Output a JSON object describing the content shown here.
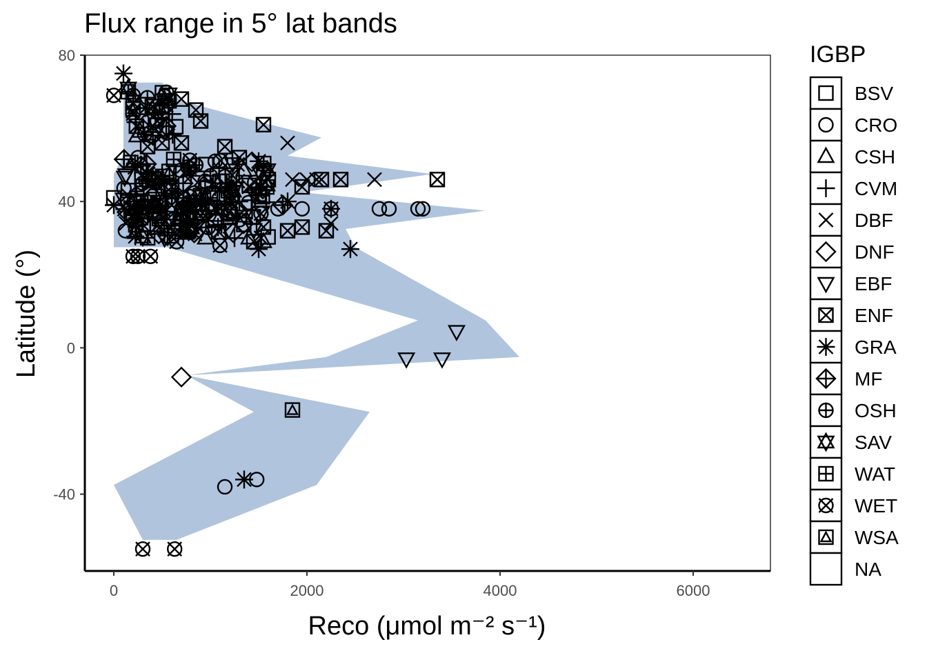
{
  "chart_data": {
    "type": "scatter",
    "title": "Flux range in 5° lat bands",
    "xlabel": "Reco (μmol m⁻² s⁻¹)",
    "ylabel": "Latitude (°)",
    "xlim": [
      -300,
      6800
    ],
    "ylim": [
      -61,
      80
    ],
    "x_ticks": [
      0,
      2000,
      4000,
      6000
    ],
    "y_ticks": [
      -40,
      0,
      40,
      80
    ],
    "band_color": "#b0c4de",
    "legend": {
      "title": "IGBP",
      "placement": "right",
      "entries": [
        "BSV",
        "CRO",
        "CSH",
        "CVM",
        "DBF",
        "DNF",
        "EBF",
        "ENF",
        "GRA",
        "MF",
        "OSH",
        "SAV",
        "WAT",
        "WET",
        "WSA",
        "NA"
      ]
    },
    "range_band": {
      "min": [
        [
          300,
          -52.5
        ],
        [
          0,
          -37.5
        ],
        [
          1450,
          -17.5
        ],
        [
          750,
          -7.5
        ],
        [
          2200,
          -2.5
        ],
        [
          3150,
          7.5
        ],
        [
          550,
          27.5
        ],
        [
          0,
          27.5
        ],
        [
          0,
          32.5
        ],
        [
          0,
          37.5
        ],
        [
          0,
          42.5
        ],
        [
          0,
          47.5
        ],
        [
          100,
          52.5
        ],
        [
          100,
          57.5
        ],
        [
          100,
          62.5
        ],
        [
          100,
          67.5
        ],
        [
          100,
          72.5
        ]
      ],
      "max": [
        [
          100,
          72.5
        ],
        [
          500,
          72.5
        ],
        [
          700,
          67.5
        ],
        [
          1400,
          62.5
        ],
        [
          2150,
          57.5
        ],
        [
          1800,
          52.5
        ],
        [
          3300,
          47.5
        ],
        [
          1950,
          42.5
        ],
        [
          3850,
          37.5
        ],
        [
          2400,
          32.5
        ],
        [
          2500,
          27.5
        ],
        [
          3850,
          7.5
        ],
        [
          4200,
          -2.5
        ],
        [
          750,
          -7.5
        ],
        [
          2650,
          -17.5
        ],
        [
          2100,
          -37.5
        ],
        [
          650,
          -52.5
        ]
      ]
    },
    "points": [
      {
        "g": "BSV",
        "x": 0,
        "y": 41
      },
      {
        "g": "BSV",
        "x": 150,
        "y": 43
      },
      {
        "g": "CRO",
        "x": 120,
        "y": 32
      },
      {
        "g": "CRO",
        "x": 250,
        "y": 52
      },
      {
        "g": "CRO",
        "x": 300,
        "y": 62
      },
      {
        "g": "CRO",
        "x": 550,
        "y": 47
      },
      {
        "g": "CRO",
        "x": 700,
        "y": 38
      },
      {
        "g": "CRO",
        "x": 850,
        "y": 50
      },
      {
        "g": "CRO",
        "x": 950,
        "y": 44
      },
      {
        "g": "CRO",
        "x": 1050,
        "y": 51
      },
      {
        "g": "CRO",
        "x": 1300,
        "y": 35
      },
      {
        "g": "CRO",
        "x": 1700,
        "y": 38
      },
      {
        "g": "CRO",
        "x": 1950,
        "y": 38
      },
      {
        "g": "CRO",
        "x": 2250,
        "y": 38
      },
      {
        "g": "CRO",
        "x": 2750,
        "y": 38
      },
      {
        "g": "CRO",
        "x": 2850,
        "y": 38
      },
      {
        "g": "CRO",
        "x": 3150,
        "y": 38
      },
      {
        "g": "CRO",
        "x": 3200,
        "y": 38
      },
      {
        "g": "CRO",
        "x": 1150,
        "y": -38
      },
      {
        "g": "CRO",
        "x": 1480,
        "y": -36
      },
      {
        "g": "CSH",
        "x": 240,
        "y": 35
      },
      {
        "g": "CSH",
        "x": 950,
        "y": 30
      },
      {
        "g": "CSH",
        "x": 1400,
        "y": 30
      },
      {
        "g": "CSH",
        "x": 1550,
        "y": 29
      },
      {
        "g": "CVM",
        "x": 350,
        "y": 40
      },
      {
        "g": "CVM",
        "x": 600,
        "y": 41
      },
      {
        "g": "CVM",
        "x": 900,
        "y": 43
      },
      {
        "g": "CVM",
        "x": 1100,
        "y": 45
      },
      {
        "g": "CVM",
        "x": 1300,
        "y": 40
      },
      {
        "g": "CVM",
        "x": 1250,
        "y": 30
      },
      {
        "g": "DBF",
        "x": 200,
        "y": 64
      },
      {
        "g": "DBF",
        "x": 400,
        "y": 44
      },
      {
        "g": "DBF",
        "x": 700,
        "y": 42
      },
      {
        "g": "DBF",
        "x": 1100,
        "y": 38
      },
      {
        "g": "DBF",
        "x": 1400,
        "y": 44
      },
      {
        "g": "DBF",
        "x": 1800,
        "y": 56
      },
      {
        "g": "DBF",
        "x": 1850,
        "y": 46
      },
      {
        "g": "DBF",
        "x": 2000,
        "y": 46
      },
      {
        "g": "DBF",
        "x": 2100,
        "y": 46
      },
      {
        "g": "DBF",
        "x": 2250,
        "y": 34
      },
      {
        "g": "DBF",
        "x": 2700,
        "y": 46
      },
      {
        "g": "DNF",
        "x": 700,
        "y": -8
      },
      {
        "g": "EBF",
        "x": 3030,
        "y": -3
      },
      {
        "g": "EBF",
        "x": 3400,
        "y": -3
      },
      {
        "g": "EBF",
        "x": 3550,
        "y": 4.5
      },
      {
        "g": "ENF",
        "x": 200,
        "y": 67
      },
      {
        "g": "ENF",
        "x": 400,
        "y": 66
      },
      {
        "g": "ENF",
        "x": 700,
        "y": 68
      },
      {
        "g": "ENF",
        "x": 850,
        "y": 65
      },
      {
        "g": "ENF",
        "x": 900,
        "y": 62
      },
      {
        "g": "ENF",
        "x": 350,
        "y": 55
      },
      {
        "g": "ENF",
        "x": 500,
        "y": 56
      },
      {
        "g": "ENF",
        "x": 700,
        "y": 56
      },
      {
        "g": "ENF",
        "x": 1150,
        "y": 55
      },
      {
        "g": "ENF",
        "x": 1300,
        "y": 52
      },
      {
        "g": "ENF",
        "x": 1550,
        "y": 61
      },
      {
        "g": "ENF",
        "x": 1600,
        "y": 46
      },
      {
        "g": "ENF",
        "x": 1950,
        "y": 44
      },
      {
        "g": "ENF",
        "x": 2150,
        "y": 46
      },
      {
        "g": "ENF",
        "x": 2350,
        "y": 46
      },
      {
        "g": "ENF",
        "x": 3350,
        "y": 46
      },
      {
        "g": "ENF",
        "x": 1550,
        "y": 33
      },
      {
        "g": "ENF",
        "x": 1800,
        "y": 32
      },
      {
        "g": "ENF",
        "x": 1950,
        "y": 33
      },
      {
        "g": "ENF",
        "x": 2200,
        "y": 32
      },
      {
        "g": "ENF",
        "x": 1450,
        "y": 29
      },
      {
        "g": "ENF",
        "x": 600,
        "y": 44
      },
      {
        "g": "GRA",
        "x": 100,
        "y": 75
      },
      {
        "g": "GRA",
        "x": 0,
        "y": 39
      },
      {
        "g": "GRA",
        "x": 800,
        "y": 47
      },
      {
        "g": "GRA",
        "x": 1050,
        "y": 44
      },
      {
        "g": "GRA",
        "x": 1500,
        "y": 51
      },
      {
        "g": "GRA",
        "x": 1500,
        "y": 27
      },
      {
        "g": "GRA",
        "x": 1800,
        "y": 40
      },
      {
        "g": "GRA",
        "x": 2250,
        "y": 38
      },
      {
        "g": "GRA",
        "x": 2450,
        "y": 27
      },
      {
        "g": "GRA",
        "x": 1350,
        "y": -36
      },
      {
        "g": "MF",
        "x": 400,
        "y": 46
      },
      {
        "g": "MF",
        "x": 750,
        "y": 39
      },
      {
        "g": "MF",
        "x": 1200,
        "y": 43
      },
      {
        "g": "MF",
        "x": 1750,
        "y": 39
      },
      {
        "g": "OSH",
        "x": 200,
        "y": 69
      },
      {
        "g": "OSH",
        "x": 300,
        "y": 45
      },
      {
        "g": "OSH",
        "x": 700,
        "y": 35
      },
      {
        "g": "OSH",
        "x": 1000,
        "y": 47
      },
      {
        "g": "SAV",
        "x": 150,
        "y": 71
      },
      {
        "g": "SAV",
        "x": 500,
        "y": 40
      },
      {
        "g": "SAV",
        "x": 900,
        "y": 38
      },
      {
        "g": "SAV",
        "x": 1350,
        "y": 36
      },
      {
        "g": "WAT",
        "x": 150,
        "y": 70
      },
      {
        "g": "WAT",
        "x": 600,
        "y": 43
      },
      {
        "g": "WAT",
        "x": 1000,
        "y": 41
      },
      {
        "g": "WAT",
        "x": 1500,
        "y": 42
      },
      {
        "g": "WET",
        "x": 0,
        "y": 69
      },
      {
        "g": "WET",
        "x": 450,
        "y": 62
      },
      {
        "g": "WET",
        "x": 200,
        "y": 36
      },
      {
        "g": "WET",
        "x": 600,
        "y": 39
      },
      {
        "g": "WET",
        "x": 1100,
        "y": 28
      },
      {
        "g": "WET",
        "x": 650,
        "y": 29
      },
      {
        "g": "WET",
        "x": 200,
        "y": 25
      },
      {
        "g": "WET",
        "x": 250,
        "y": 25
      },
      {
        "g": "WET",
        "x": 380,
        "y": 25
      },
      {
        "g": "WET",
        "x": 300,
        "y": -55
      },
      {
        "g": "WET",
        "x": 630,
        "y": -55
      },
      {
        "g": "WSA",
        "x": 1850,
        "y": -17
      },
      {
        "g": "WSA",
        "x": 450,
        "y": 33
      }
    ],
    "cluster_seed_regions": [
      {
        "xr": [
          100,
          1600
        ],
        "yr": [
          30,
          52
        ],
        "n": 170
      },
      {
        "xr": [
          150,
          650
        ],
        "yr": [
          57,
          70
        ],
        "n": 30
      }
    ]
  }
}
